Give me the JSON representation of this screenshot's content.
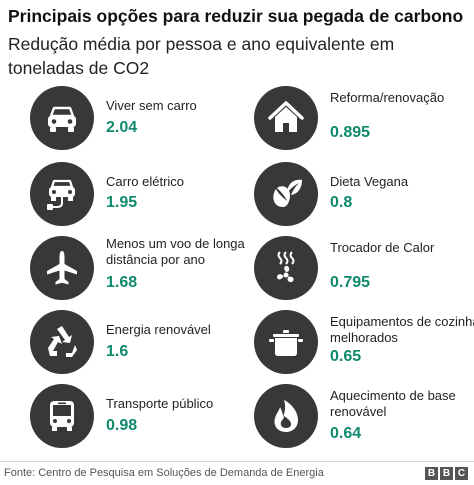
{
  "chart_data": {
    "type": "table",
    "title": "Principais opções para reduzir sua pegada de carbono",
    "subtitle": "Redução média por pessoa e ano equivalente em toneladas de CO2",
    "items": [
      {
        "label": "Viver sem carro",
        "value": "2.04",
        "icon": "car-icon"
      },
      {
        "label": "Carro elétrico",
        "value": "1.95",
        "icon": "electric-car-icon"
      },
      {
        "label": "Menos um voo de longa distância por ano",
        "value": "1.68",
        "icon": "airplane-icon"
      },
      {
        "label": "Energia renovável",
        "value": "1.6",
        "icon": "recycle-icon"
      },
      {
        "label": "Transporte público",
        "value": "0.98",
        "icon": "bus-icon"
      },
      {
        "label": "Reforma/renovação",
        "value": "0.895",
        "icon": "house-icon"
      },
      {
        "label": "Dieta Vegana",
        "value": "0.8",
        "icon": "leaf-icon"
      },
      {
        "label": "Trocador de Calor",
        "value": "0.795",
        "icon": "fan-icon"
      },
      {
        "label": "Equipamentos de cozinha melhorados",
        "value": "0.65",
        "icon": "cooking-pot-icon"
      },
      {
        "label": "Aquecimento de base renovável",
        "value": "0.64",
        "icon": "flame-icon"
      }
    ],
    "value_color": "#0f8a6c",
    "icon_bg_color": "#383838"
  },
  "footer": {
    "source": "Fonte: Centro de Pesquisa em Soluções de Demanda de Energia",
    "logo": [
      "B",
      "B",
      "C"
    ]
  }
}
